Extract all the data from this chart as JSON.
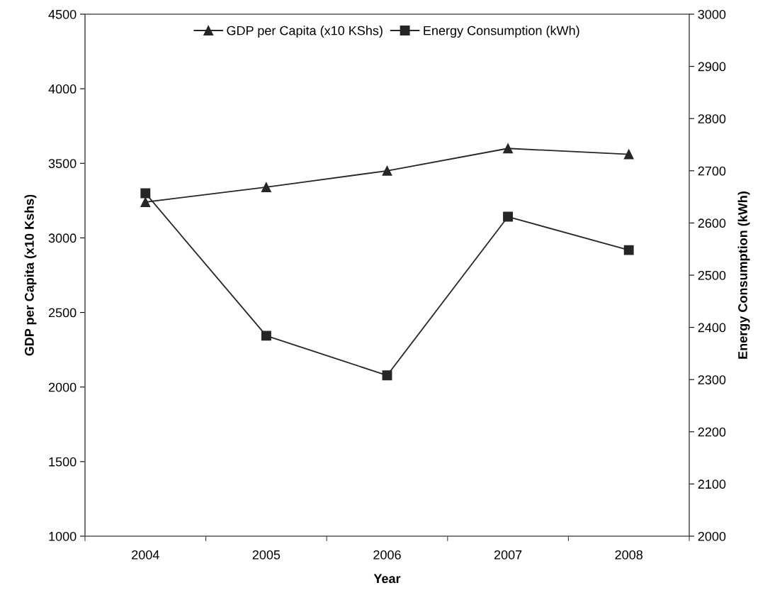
{
  "chart_data": {
    "type": "line",
    "xlabel": "Year",
    "ylabel": "GDP per Capita (x10 Kshs)",
    "y2label": "Energy Consumption (kWh)",
    "categories": [
      "2004",
      "2005",
      "2006",
      "2007",
      "2008"
    ],
    "series": [
      {
        "name": "GDP per Capita (x10 KShs)",
        "color": "#262626",
        "marker": "triangle",
        "values": [
          3240,
          3340,
          3450,
          3600,
          3560
        ]
      },
      {
        "name": "Energy Consumption (kWh)",
        "color": "#262626",
        "marker": "square",
        "axis": "y2",
        "values": [
          2657,
          2384,
          2308,
          2612,
          2548
        ]
      }
    ],
    "ylim": [
      1000,
      4500
    ],
    "yticks": [
      1000,
      1500,
      2000,
      2500,
      3000,
      3500,
      4000,
      4500
    ],
    "y2lim": [
      2000,
      3000
    ],
    "y2ticks": [
      2000,
      2100,
      2200,
      2300,
      2400,
      2500,
      2600,
      2700,
      2800,
      2900,
      3000
    ],
    "grid": false,
    "legend": "top",
    "line_style": "solid"
  }
}
